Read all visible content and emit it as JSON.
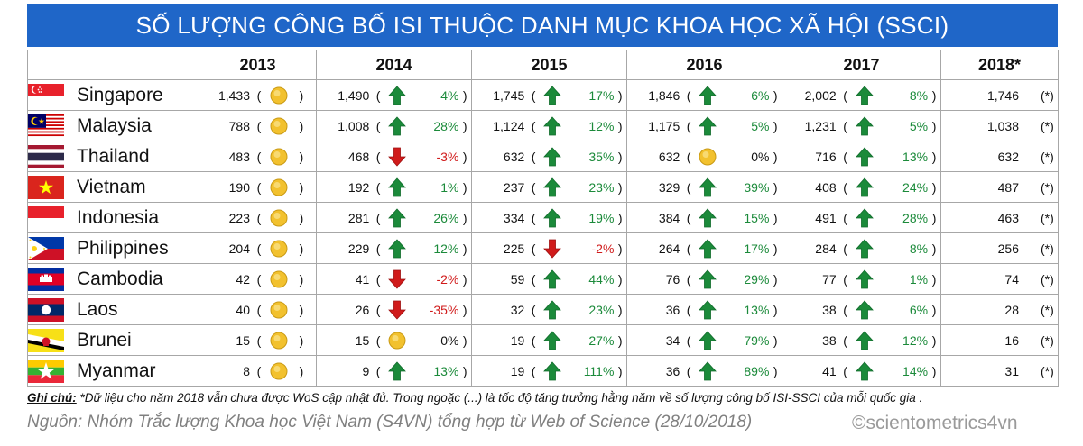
{
  "title": "SỐ LƯỢNG CÔNG BỐ ISI THUỘC DANH MỤC KHOA HỌC XÃ HỘI (SSCI)",
  "colors": {
    "title_bg": "#1f66c8",
    "up": "#1b8a3a",
    "down": "#d01b1b",
    "neutral": "#f2c12e"
  },
  "chart_data": {
    "type": "table",
    "columns": [
      "2013",
      "2014",
      "2015",
      "2016",
      "2017",
      "2018*"
    ],
    "rows": [
      {
        "country": "Singapore",
        "flag": "singapore-flag",
        "values": [
          "1,433",
          "1,490",
          "1,745",
          "1,846",
          "2,002",
          "1,746"
        ],
        "changes": [
          "",
          "4%",
          "17%",
          "6%",
          "8%",
          "(*)"
        ],
        "trend": [
          "neutral",
          "up",
          "up",
          "up",
          "up",
          "none"
        ]
      },
      {
        "country": "Malaysia",
        "flag": "malaysia-flag",
        "values": [
          "788",
          "1,008",
          "1,124",
          "1,175",
          "1,231",
          "1,038"
        ],
        "changes": [
          "",
          "28%",
          "12%",
          "5%",
          "5%",
          "(*)"
        ],
        "trend": [
          "neutral",
          "up",
          "up",
          "up",
          "up",
          "none"
        ]
      },
      {
        "country": "Thailand",
        "flag": "thailand-flag",
        "values": [
          "483",
          "468",
          "632",
          "632",
          "716",
          "632"
        ],
        "changes": [
          "",
          "-3%",
          "35%",
          "0%",
          "13%",
          "(*)"
        ],
        "trend": [
          "neutral",
          "down",
          "up",
          "neutral",
          "up",
          "none"
        ]
      },
      {
        "country": "Vietnam",
        "flag": "vietnam-flag",
        "values": [
          "190",
          "192",
          "237",
          "329",
          "408",
          "487"
        ],
        "changes": [
          "",
          "1%",
          "23%",
          "39%",
          "24%",
          "(*)"
        ],
        "trend": [
          "neutral",
          "up",
          "up",
          "up",
          "up",
          "none"
        ]
      },
      {
        "country": "Indonesia",
        "flag": "indonesia-flag",
        "values": [
          "223",
          "281",
          "334",
          "384",
          "491",
          "463"
        ],
        "changes": [
          "",
          "26%",
          "19%",
          "15%",
          "28%",
          "(*)"
        ],
        "trend": [
          "neutral",
          "up",
          "up",
          "up",
          "up",
          "none"
        ]
      },
      {
        "country": "Philippines",
        "flag": "philippines-flag",
        "values": [
          "204",
          "229",
          "225",
          "264",
          "284",
          "256"
        ],
        "changes": [
          "",
          "12%",
          "-2%",
          "17%",
          "8%",
          "(*)"
        ],
        "trend": [
          "neutral",
          "up",
          "down",
          "up",
          "up",
          "none"
        ]
      },
      {
        "country": "Cambodia",
        "flag": "cambodia-flag",
        "values": [
          "42",
          "41",
          "59",
          "76",
          "77",
          "74"
        ],
        "changes": [
          "",
          "-2%",
          "44%",
          "29%",
          "1%",
          "(*)"
        ],
        "trend": [
          "neutral",
          "down",
          "up",
          "up",
          "up",
          "none"
        ]
      },
      {
        "country": "Laos",
        "flag": "laos-flag",
        "values": [
          "40",
          "26",
          "32",
          "36",
          "38",
          "28"
        ],
        "changes": [
          "",
          "-35%",
          "23%",
          "13%",
          "6%",
          "(*)"
        ],
        "trend": [
          "neutral",
          "down",
          "up",
          "up",
          "up",
          "none"
        ]
      },
      {
        "country": "Brunei",
        "flag": "brunei-flag",
        "values": [
          "15",
          "15",
          "19",
          "34",
          "38",
          "16"
        ],
        "changes": [
          "",
          "0%",
          "27%",
          "79%",
          "12%",
          "(*)"
        ],
        "trend": [
          "neutral",
          "neutral",
          "up",
          "up",
          "up",
          "none"
        ]
      },
      {
        "country": "Myanmar",
        "flag": "myanmar-flag",
        "values": [
          "8",
          "9",
          "19",
          "36",
          "41",
          "31"
        ],
        "changes": [
          "",
          "13%",
          "111%",
          "89%",
          "14%",
          "(*)"
        ],
        "trend": [
          "neutral",
          "up",
          "up",
          "up",
          "up",
          "none"
        ]
      }
    ]
  },
  "note_label": "Ghi chú:",
  "note_text": " *Dữ liệu cho năm 2018 vẫn chưa được WoS cập nhật đủ. Trong ngoặc (...) là tốc độ tăng trưởng hằng năm về số lượng công bố ISI-SSCI của mỗi quốc gia .",
  "source": "Nguồn: Nhóm Trắc lượng Khoa học Việt Nam (S4VN) tổng hợp từ Web of Science (28/10/2018)",
  "credit": "©scientometrics4vn"
}
